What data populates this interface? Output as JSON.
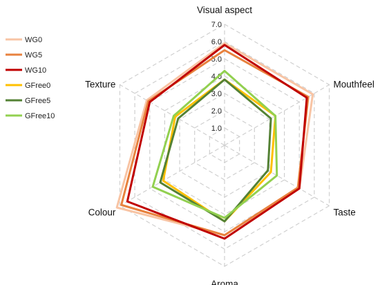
{
  "chart_data": {
    "type": "radar",
    "axes": [
      "Visual aspect",
      "Mouthfeel",
      "Taste",
      "Aroma",
      "Colour",
      "Texture"
    ],
    "scale": {
      "min": 0,
      "max": 7,
      "step": 1
    },
    "tick_labels": [
      "1.0",
      "2.0",
      "3.0",
      "4.0",
      "5.0",
      "6.0",
      "7.0"
    ],
    "grid": "dashed",
    "legend_position": "left",
    "series": [
      {
        "name": "WG0",
        "color": "#F8C4A4",
        "values": [
          5.9,
          5.9,
          5.0,
          5.2,
          7.2,
          5.2
        ]
      },
      {
        "name": "WG5",
        "color": "#E8823E",
        "values": [
          5.5,
          5.6,
          4.9,
          5.2,
          6.9,
          5.1
        ]
      },
      {
        "name": "WG10",
        "color": "#C00000",
        "values": [
          5.8,
          5.5,
          5.0,
          5.4,
          6.5,
          5.0
        ]
      },
      {
        "name": "GFree0",
        "color": "#FFC000",
        "values": [
          3.8,
          3.4,
          3.1,
          4.4,
          4.1,
          3.3
        ]
      },
      {
        "name": "GFree5",
        "color": "#548235",
        "values": [
          3.8,
          3.1,
          2.9,
          4.4,
          4.3,
          3.1
        ]
      },
      {
        "name": "GFree10",
        "color": "#92D050",
        "values": [
          4.3,
          3.4,
          3.5,
          4.2,
          4.8,
          3.4
        ]
      }
    ]
  }
}
